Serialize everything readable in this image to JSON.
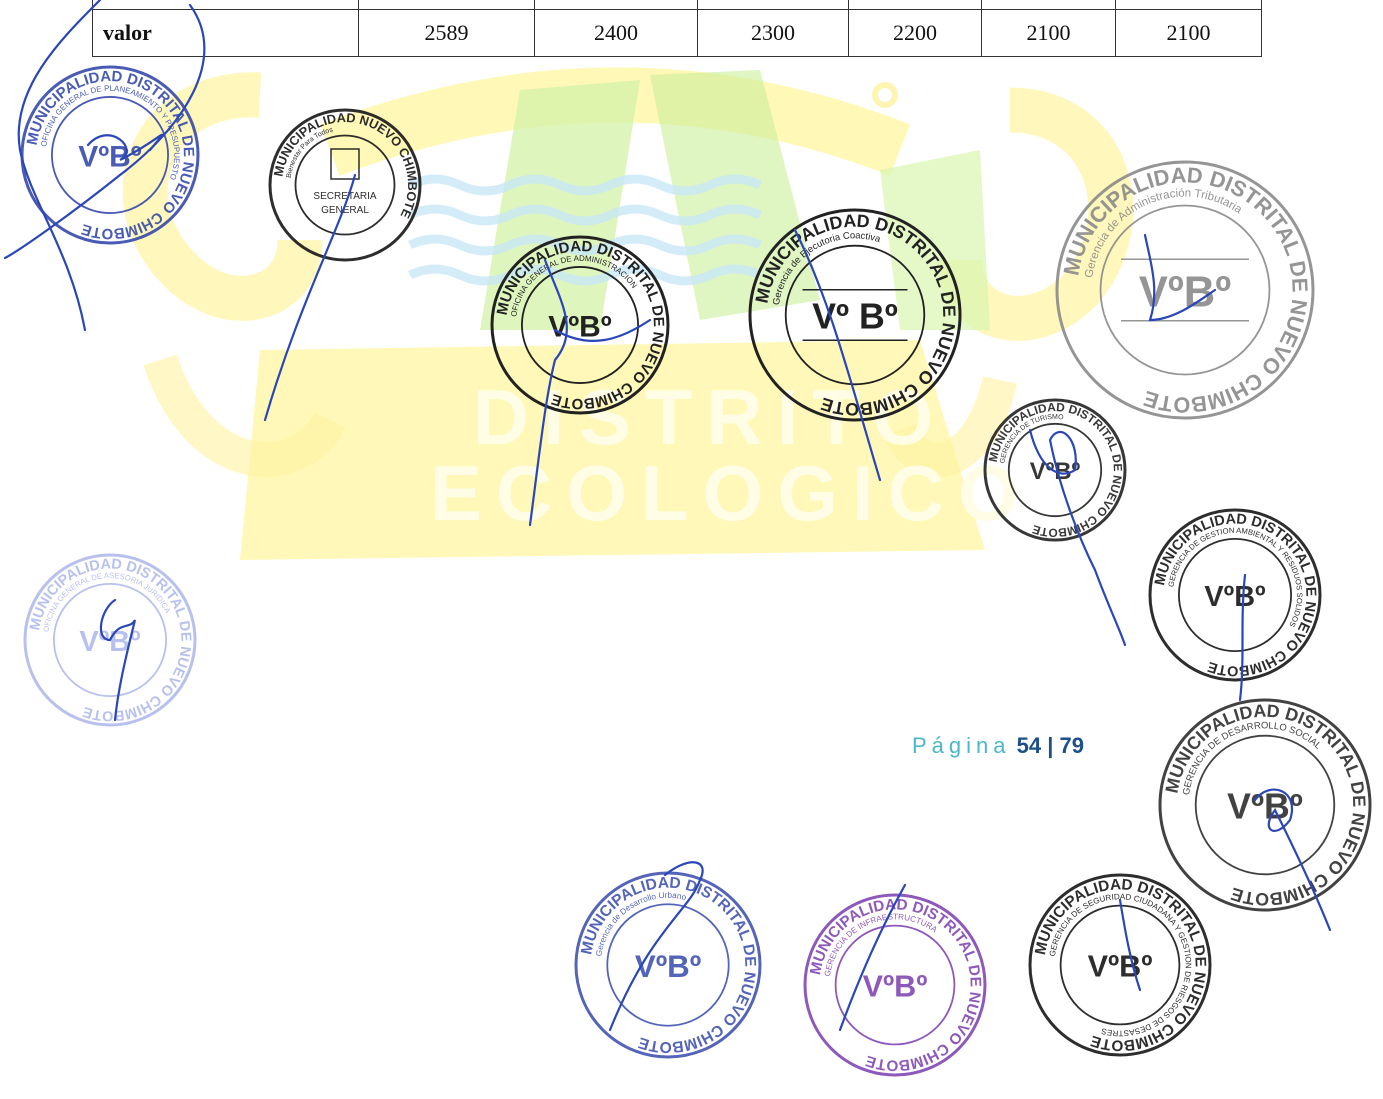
{
  "watermark": {
    "line1": "DISTRITO",
    "line2": "ECOLOGICO"
  },
  "table": {
    "row_label": "valor",
    "values": [
      "2589",
      "2400",
      "2300",
      "2200",
      "2100",
      "2100"
    ]
  },
  "footer": {
    "page_word": "Página",
    "page_current": "54",
    "page_separator": "|",
    "page_total": "79"
  },
  "stamps": [
    {
      "outer": "MUNICIPALIDAD DISTRITAL DE NUEVO CHIMBOTE",
      "inner": "OFICINA GENERAL DE PLANEAMIENTO Y PRESUPUESTO",
      "center": "VºBº"
    },
    {
      "outer": "MUNICIPALIDAD NUEVO CHIMBOTE",
      "inner": "Bienestar Para Todos",
      "center_line1": "SECRETARIA",
      "center_line2": "GENERAL"
    },
    {
      "outer": "MUNICIPALIDAD DISTRITAL DE NUEVO CHIMBOTE",
      "inner": "OFICINA GENERAL DE ADMINISTRACION",
      "center": "VºBº"
    },
    {
      "outer": "MUNICIPALIDAD DISTRITAL DE NUEVO CHIMBOTE",
      "inner": "Gerencia de Ejecutoria Coactiva",
      "center": "Vº Bº"
    },
    {
      "outer": "MUNICIPALIDAD DISTRITAL DE NUEVO CHIMBOTE",
      "inner": "Gerencia de Administración Tributaria",
      "center": "VºBº"
    },
    {
      "outer": "MUNICIPALIDAD DISTRITAL DE NUEVO CHIMBOTE",
      "inner": "GERENCIA DE TURISMO",
      "center": "VºBº"
    },
    {
      "outer": "MUNICIPALIDAD DISTRITAL DE NUEVO CHIMBOTE",
      "inner": "GERENCIA DE GESTION AMBIENTAL Y RESIDUOS SOLIDOS",
      "center": "VºBº"
    },
    {
      "outer": "MUNICIPALIDAD DISTRITAL DE NUEVO CHIMBOTE",
      "inner": "OFICINA GENERAL DE ASESORIA JURIDICA",
      "center": "VºBº"
    },
    {
      "outer": "MUNICIPALIDAD DISTRITAL DE NUEVO CHIMBOTE",
      "inner": "GERENCIA DE DESARROLLO SOCIAL",
      "center": "VºBº"
    },
    {
      "outer": "MUNICIPALIDAD DISTRITAL DE NUEVO CHIMBOTE",
      "inner": "Gerencia de Desarrollo Urbano",
      "center": "VºBº"
    },
    {
      "outer": "MUNICIPALIDAD DISTRITAL DE NUEVO CHIMBOTE",
      "inner": "GERENCIA DE INFRAESTRUCTURA",
      "center": "VºBº"
    },
    {
      "outer": "MUNICIPALIDAD DISTRITAL DE NUEVO CHIMBOTE",
      "inner": "GERENCIA DE SEGURIDAD CIUDADANA Y GESTION DE RIESGOS DE DESASTRES",
      "center": "VºBº"
    }
  ],
  "colors": {
    "stamp_blue": "#2a3fa8",
    "stamp_lightblue": "#7f8fe0",
    "stamp_black": "#222222",
    "stamp_grey": "#8a8a8a",
    "stamp_purple": "#7a3db0",
    "watermark_yellow": "#fff36b",
    "watermark_green": "#c9ee9a",
    "page_number_teal": "#4bb8c9"
  }
}
